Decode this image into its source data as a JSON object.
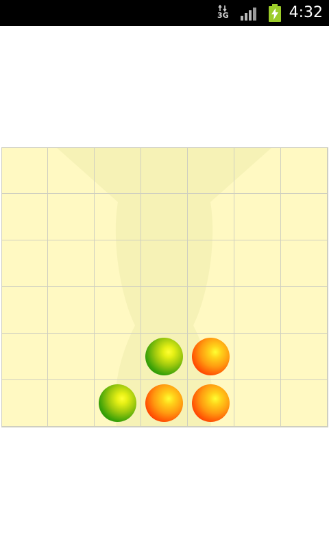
{
  "status_bar": {
    "network_type": "3G",
    "time": "4:32",
    "battery_status": "charging",
    "signal_strength": "full"
  },
  "game": {
    "columns": 7,
    "rows": 6,
    "colors": {
      "board_background": "#fff9c2",
      "grid_line": "#cfcfc0",
      "player_red": "#ff3d00",
      "player_green": "#118a00"
    },
    "board": [
      [
        "",
        "",
        "",
        "",
        "",
        "",
        ""
      ],
      [
        "",
        "",
        "",
        "",
        "",
        "",
        ""
      ],
      [
        "",
        "",
        "",
        "",
        "",
        "",
        ""
      ],
      [
        "",
        "",
        "",
        "",
        "",
        "",
        ""
      ],
      [
        "",
        "",
        "",
        "green",
        "red",
        "",
        ""
      ],
      [
        "",
        "",
        "green",
        "red",
        "red",
        "",
        ""
      ]
    ]
  }
}
